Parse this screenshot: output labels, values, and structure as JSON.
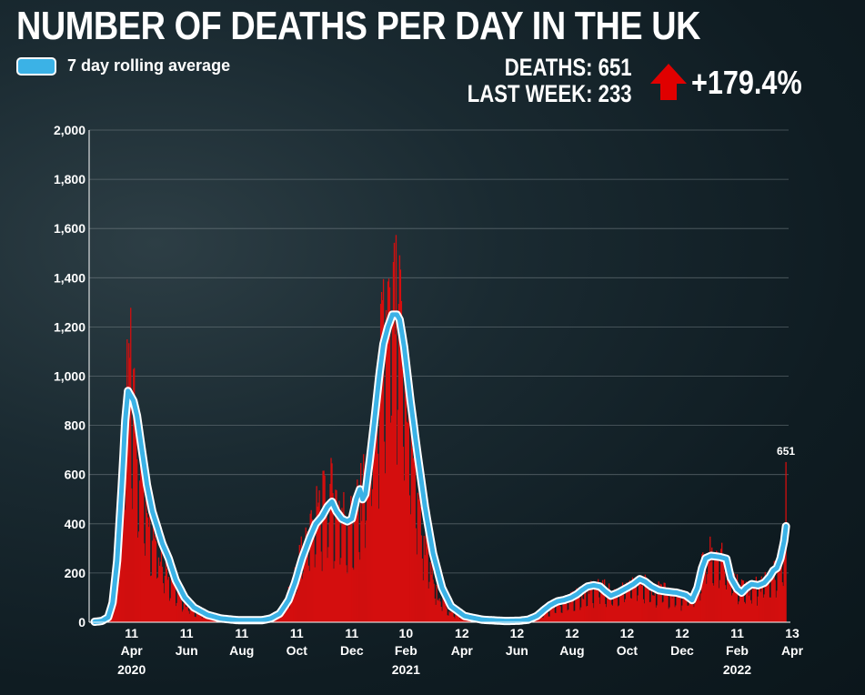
{
  "header": {
    "title": "NUMBER OF DEATHS PER DAY IN THE UK",
    "legend_label": "7 day rolling average",
    "deaths_label": "DEATHS:",
    "deaths_value": "651",
    "last_week_label": "LAST WEEK:",
    "last_week_value": "233",
    "change": "+179.4%",
    "change_direction": "up-arrow-icon"
  },
  "colors": {
    "bars": "#d40e0e",
    "average_line": "#3bb2e6",
    "average_outline": "#ffffff",
    "arrow": "#e00000"
  },
  "chart_data": {
    "type": "bar",
    "title": "NUMBER OF DEATHS PER DAY IN THE UK",
    "xlabel": "",
    "ylabel": "",
    "ylim": [
      0,
      2000
    ],
    "yticks": [
      0,
      200,
      400,
      600,
      800,
      1000,
      1200,
      1400,
      1600,
      1800,
      2000
    ],
    "ytick_labels": [
      "0",
      "200",
      "400",
      "600",
      "800",
      "1,000",
      "1,200",
      "1,400",
      "1,600",
      "1,800",
      "2,000"
    ],
    "x_range_days": [
      0,
      766
    ],
    "x_start": "2020-03-01",
    "x_end": "2022-04-13",
    "x_ticks": [
      {
        "day": 41,
        "day_label": "11",
        "month": "Apr",
        "year": "2020"
      },
      {
        "day": 102,
        "day_label": "11",
        "month": "Jun",
        "year": ""
      },
      {
        "day": 163,
        "day_label": "11",
        "month": "Aug",
        "year": ""
      },
      {
        "day": 224,
        "day_label": "11",
        "month": "Oct",
        "year": ""
      },
      {
        "day": 285,
        "day_label": "11",
        "month": "Dec",
        "year": ""
      },
      {
        "day": 345,
        "day_label": "10",
        "month": "Feb",
        "year": "2021"
      },
      {
        "day": 407,
        "day_label": "12",
        "month": "Apr",
        "year": ""
      },
      {
        "day": 468,
        "day_label": "12",
        "month": "Jun",
        "year": ""
      },
      {
        "day": 529,
        "day_label": "12",
        "month": "Aug",
        "year": ""
      },
      {
        "day": 590,
        "day_label": "12",
        "month": "Oct",
        "year": ""
      },
      {
        "day": 651,
        "day_label": "12",
        "month": "Dec",
        "year": ""
      },
      {
        "day": 712,
        "day_label": "11",
        "month": "Feb",
        "year": "2022"
      },
      {
        "day": 773,
        "day_label": "13",
        "month": "Apr",
        "year": ""
      }
    ],
    "series": [
      {
        "name": "Daily deaths",
        "type": "bar",
        "keypoints": [
          [
            0,
            0
          ],
          [
            12,
            10
          ],
          [
            22,
            120
          ],
          [
            30,
            500
          ],
          [
            36,
            950
          ],
          [
            40,
            1050
          ],
          [
            44,
            900
          ],
          [
            52,
            650
          ],
          [
            62,
            450
          ],
          [
            72,
            300
          ],
          [
            85,
            180
          ],
          [
            100,
            80
          ],
          [
            120,
            30
          ],
          [
            150,
            12
          ],
          [
            180,
            10
          ],
          [
            200,
            25
          ],
          [
            212,
            80
          ],
          [
            222,
            200
          ],
          [
            235,
            380
          ],
          [
            250,
            480
          ],
          [
            262,
            540
          ],
          [
            275,
            460
          ],
          [
            285,
            430
          ],
          [
            295,
            520
          ],
          [
            305,
            700
          ],
          [
            315,
            1050
          ],
          [
            325,
            1250
          ],
          [
            332,
            1300
          ],
          [
            338,
            1250
          ],
          [
            345,
            1000
          ],
          [
            355,
            650
          ],
          [
            365,
            350
          ],
          [
            378,
            130
          ],
          [
            395,
            40
          ],
          [
            420,
            15
          ],
          [
            450,
            10
          ],
          [
            480,
            15
          ],
          [
            500,
            40
          ],
          [
            520,
            90
          ],
          [
            540,
            120
          ],
          [
            560,
            150
          ],
          [
            575,
            120
          ],
          [
            590,
            140
          ],
          [
            605,
            170
          ],
          [
            620,
            140
          ],
          [
            640,
            120
          ],
          [
            660,
            100
          ],
          [
            668,
            150
          ],
          [
            676,
            280
          ],
          [
            685,
            300
          ],
          [
            695,
            260
          ],
          [
            705,
            180
          ],
          [
            715,
            150
          ],
          [
            725,
            140
          ],
          [
            740,
            165
          ],
          [
            752,
            200
          ],
          [
            760,
            250
          ],
          [
            765,
            400
          ]
        ],
        "last_value": 651
      },
      {
        "name": "7 day rolling average",
        "type": "line",
        "keypoints": [
          [
            0,
            2
          ],
          [
            8,
            5
          ],
          [
            15,
            20
          ],
          [
            20,
            80
          ],
          [
            25,
            250
          ],
          [
            30,
            550
          ],
          [
            34,
            820
          ],
          [
            37,
            940
          ],
          [
            40,
            920
          ],
          [
            43,
            900
          ],
          [
            47,
            840
          ],
          [
            52,
            710
          ],
          [
            58,
            560
          ],
          [
            64,
            450
          ],
          [
            70,
            380
          ],
          [
            75,
            320
          ],
          [
            82,
            260
          ],
          [
            90,
            170
          ],
          [
            100,
            100
          ],
          [
            110,
            60
          ],
          [
            125,
            30
          ],
          [
            140,
            15
          ],
          [
            160,
            8
          ],
          [
            185,
            8
          ],
          [
            195,
            15
          ],
          [
            205,
            35
          ],
          [
            215,
            90
          ],
          [
            222,
            160
          ],
          [
            230,
            260
          ],
          [
            238,
            340
          ],
          [
            245,
            400
          ],
          [
            252,
            430
          ],
          [
            258,
            470
          ],
          [
            263,
            490
          ],
          [
            268,
            450
          ],
          [
            274,
            420
          ],
          [
            280,
            410
          ],
          [
            285,
            420
          ],
          [
            290,
            500
          ],
          [
            294,
            540
          ],
          [
            297,
            500
          ],
          [
            300,
            520
          ],
          [
            305,
            660
          ],
          [
            310,
            820
          ],
          [
            315,
            990
          ],
          [
            320,
            1130
          ],
          [
            325,
            1200
          ],
          [
            330,
            1250
          ],
          [
            335,
            1250
          ],
          [
            338,
            1230
          ],
          [
            343,
            1120
          ],
          [
            350,
            900
          ],
          [
            358,
            680
          ],
          [
            366,
            470
          ],
          [
            375,
            280
          ],
          [
            385,
            140
          ],
          [
            395,
            65
          ],
          [
            410,
            25
          ],
          [
            430,
            10
          ],
          [
            455,
            5
          ],
          [
            470,
            6
          ],
          [
            480,
            10
          ],
          [
            490,
            25
          ],
          [
            498,
            50
          ],
          [
            505,
            70
          ],
          [
            513,
            85
          ],
          [
            520,
            90
          ],
          [
            528,
            100
          ],
          [
            535,
            115
          ],
          [
            540,
            130
          ],
          [
            546,
            145
          ],
          [
            553,
            150
          ],
          [
            560,
            145
          ],
          [
            566,
            125
          ],
          [
            572,
            108
          ],
          [
            580,
            120
          ],
          [
            590,
            140
          ],
          [
            597,
            155
          ],
          [
            604,
            175
          ],
          [
            610,
            165
          ],
          [
            617,
            145
          ],
          [
            625,
            130
          ],
          [
            633,
            125
          ],
          [
            645,
            120
          ],
          [
            655,
            110
          ],
          [
            662,
            90
          ],
          [
            668,
            140
          ],
          [
            673,
            220
          ],
          [
            677,
            260
          ],
          [
            683,
            270
          ],
          [
            693,
            265
          ],
          [
            700,
            258
          ],
          [
            705,
            180
          ],
          [
            712,
            135
          ],
          [
            717,
            120
          ],
          [
            722,
            140
          ],
          [
            728,
            155
          ],
          [
            735,
            150
          ],
          [
            742,
            160
          ],
          [
            748,
            185
          ],
          [
            752,
            210
          ],
          [
            756,
            220
          ],
          [
            760,
            260
          ],
          [
            764,
            330
          ],
          [
            766,
            390
          ]
        ]
      }
    ],
    "annotations": [
      {
        "label": "651",
        "day": 766,
        "value": 651
      }
    ]
  }
}
